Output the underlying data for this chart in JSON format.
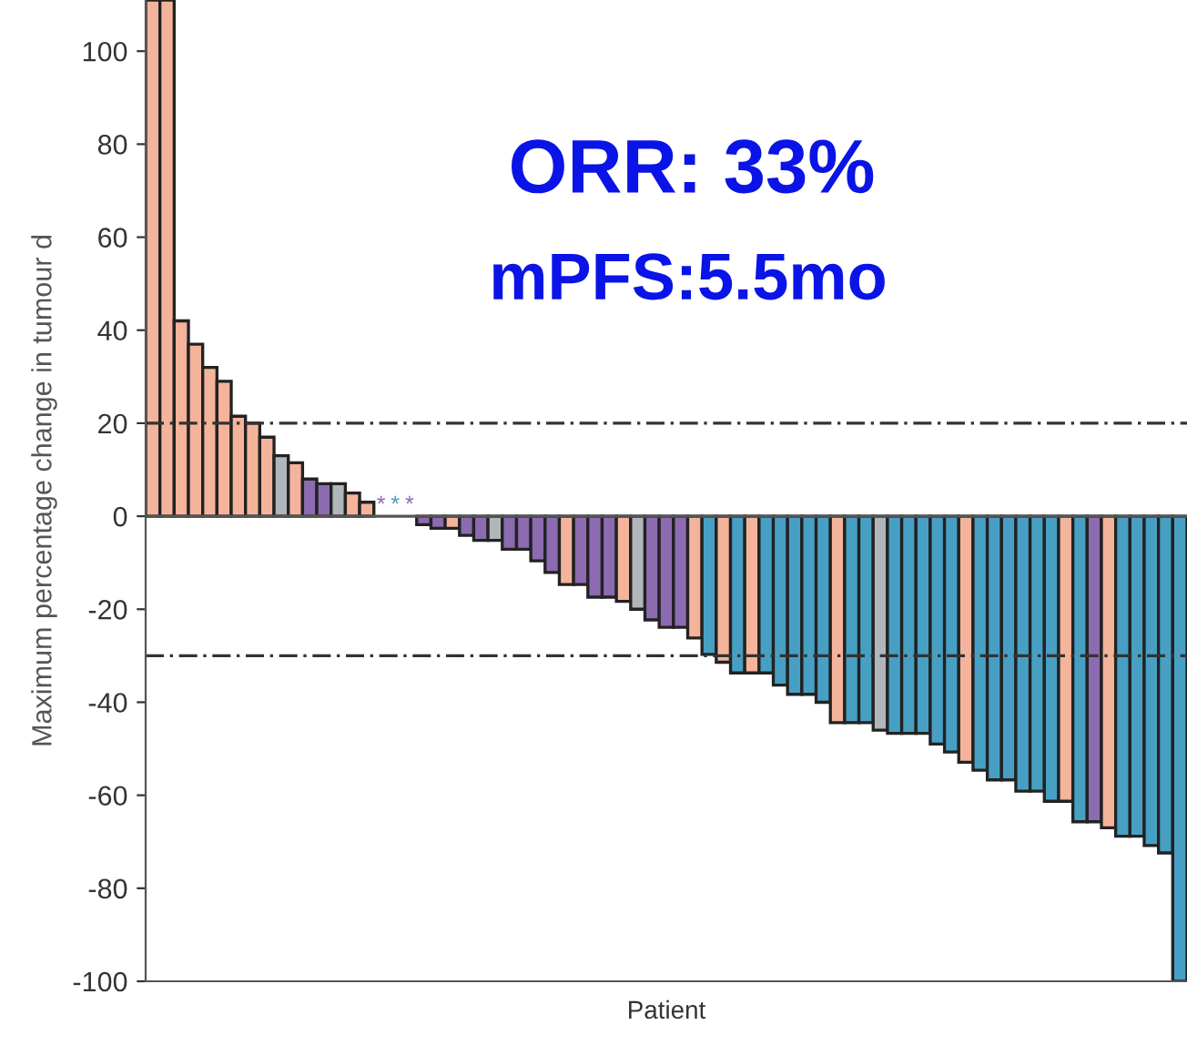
{
  "chart_data": {
    "type": "bar",
    "xlabel": "Patient",
    "ylabel": "Maximum percentage change in tumour d",
    "categories": [
      null,
      null,
      null,
      null,
      null,
      null,
      null,
      null,
      null,
      null,
      null,
      null,
      null,
      null,
      null,
      null,
      null,
      null,
      null,
      null,
      null,
      null,
      null,
      null,
      null,
      null,
      null,
      null,
      null,
      null,
      null,
      null,
      null,
      null,
      null,
      null,
      null,
      null,
      null,
      null,
      null,
      null,
      null,
      null,
      null,
      null,
      null,
      null,
      null,
      null,
      null,
      null,
      null,
      null,
      null,
      null,
      null,
      null,
      null,
      null,
      null,
      null,
      null,
      null,
      null,
      null,
      null,
      null,
      null,
      null,
      null,
      null,
      null
    ],
    "values": [
      111,
      111,
      42,
      37,
      32,
      29,
      21.5,
      20,
      17,
      13,
      11.5,
      8,
      7,
      7,
      5,
      3,
      null,
      null,
      null,
      -1.8,
      -2.6,
      -2.6,
      -4.1,
      -5.2,
      -5.2,
      -7.1,
      -7.1,
      -9.6,
      -12.1,
      -14.7,
      -14.7,
      -17.4,
      -17.4,
      -18.3,
      -20,
      -22.3,
      -23.9,
      -23.9,
      -26.2,
      -29.7,
      -31.4,
      -33.7,
      -33.7,
      -33.7,
      -36.3,
      -38.3,
      -38.3,
      -40,
      -44.4,
      -44.4,
      -44.4,
      -46,
      -46.7,
      -46.7,
      -46.7,
      -49,
      -50.7,
      -52.9,
      -54.6,
      -56.7,
      -56.7,
      -59.1,
      -59.1,
      -61.3,
      -61.3,
      -65.7,
      -65.7,
      -67,
      -68.8,
      -68.8,
      -70.8,
      -72.4,
      -100
    ],
    "colors": [
      "#f4b49b",
      "#f4b49b",
      "#f4b49b",
      "#f4b49b",
      "#f4b49b",
      "#f4b49b",
      "#f4b49b",
      "#f4b49b",
      "#f4b49b",
      "#b0b6ba",
      "#f4b49b",
      "#8c6bb1",
      "#8c6bb1",
      "#b0b6ba",
      "#f4b49b",
      "#f4b49b",
      "#8c6bb1",
      "#47a0c4",
      "#8c6bb1",
      "#8c6bb1",
      "#8c6bb1",
      "#f4b49b",
      "#8c6bb1",
      "#8c6bb1",
      "#b0b6ba",
      "#8c6bb1",
      "#8c6bb1",
      "#8c6bb1",
      "#8c6bb1",
      "#f4b49b",
      "#8c6bb1",
      "#8c6bb1",
      "#8c6bb1",
      "#f4b49b",
      "#b0b6ba",
      "#8c6bb1",
      "#8c6bb1",
      "#8c6bb1",
      "#f4b49b",
      "#47a0c4",
      "#f4b49b",
      "#47a0c4",
      "#f4b49b",
      "#47a0c4",
      "#47a0c4",
      "#47a0c4",
      "#47a0c4",
      "#47a0c4",
      "#f4b49b",
      "#47a0c4",
      "#47a0c4",
      "#b0b6ba",
      "#47a0c4",
      "#47a0c4",
      "#47a0c4",
      "#47a0c4",
      "#47a0c4",
      "#f4b49b",
      "#47a0c4",
      "#47a0c4",
      "#47a0c4",
      "#47a0c4",
      "#47a0c4",
      "#47a0c4",
      "#f4b49b",
      "#47a0c4",
      "#8c6bb1",
      "#f4b49b",
      "#47a0c4",
      "#47a0c4",
      "#47a0c4",
      "#47a0c4",
      "#47a0c4"
    ],
    "value_labels": [
      null,
      null,
      null,
      null,
      null,
      null,
      null,
      null,
      null,
      null,
      null,
      null,
      null,
      null,
      null,
      null,
      "*",
      "*",
      "*",
      null,
      null,
      null,
      null,
      null,
      null,
      null,
      null,
      null,
      null,
      null,
      null,
      null,
      null,
      null,
      null,
      null,
      null,
      null,
      null,
      null,
      null,
      null,
      null,
      null,
      null,
      null,
      null,
      null,
      null,
      null,
      null,
      null,
      null,
      null,
      null,
      null,
      null,
      null,
      null,
      null,
      null,
      null,
      null,
      null,
      null,
      null,
      null,
      null,
      null,
      null,
      null,
      null,
      null
    ],
    "ylim": [
      -100,
      111
    ],
    "yticks": [
      -100,
      -80,
      -60,
      -40,
      -20,
      0,
      20,
      40,
      60,
      80,
      100
    ],
    "ref_lines": [
      {
        "axis": "y",
        "value": 20,
        "line_style": "dashdot"
      },
      {
        "axis": "y",
        "value": -30,
        "line_style": "dashdot"
      }
    ],
    "annotations": [
      "ORR: 33%",
      "mPFS:5.5mo"
    ],
    "grid": false,
    "legend": false
  }
}
